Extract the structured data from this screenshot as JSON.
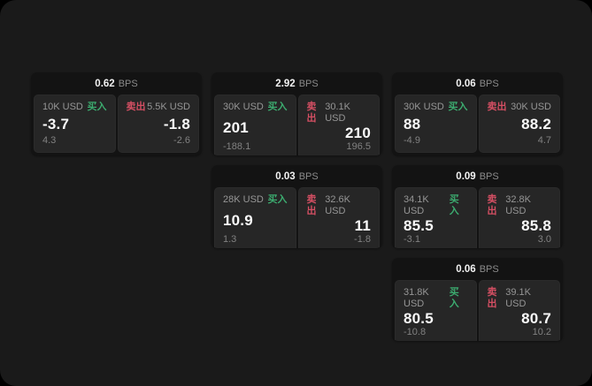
{
  "labels": {
    "buy": "买入",
    "sell": "卖出",
    "bps_unit": "BPS"
  },
  "colors": {
    "window_bg": "#1a1a1a",
    "card_bg": "#131313",
    "panel_bg": "#262626",
    "buy_green": "#3cab6f",
    "sell_red": "#d44f63"
  },
  "cards": [
    {
      "bps": "0.62",
      "grid": {
        "col": 1,
        "row": 1
      },
      "buy": {
        "amount": "10K USD",
        "price": "-3.7",
        "delta": "4.3"
      },
      "sell": {
        "amount": "5.5K USD",
        "price": "-1.8",
        "delta": "-2.6"
      }
    },
    {
      "bps": "2.92",
      "grid": {
        "col": 2,
        "row": 1
      },
      "buy": {
        "amount": "30K USD",
        "price": "201",
        "delta": "-188.1"
      },
      "sell": {
        "amount": "30.1K USD",
        "price": "210",
        "delta": "196.5"
      }
    },
    {
      "bps": "0.06",
      "grid": {
        "col": 3,
        "row": 1
      },
      "buy": {
        "amount": "30K USD",
        "price": "88",
        "delta": "-4.9"
      },
      "sell": {
        "amount": "30K USD",
        "price": "88.2",
        "delta": "4.7"
      }
    },
    {
      "bps": "0.03",
      "grid": {
        "col": 2,
        "row": 2
      },
      "buy": {
        "amount": "28K USD",
        "price": "10.9",
        "delta": "1.3"
      },
      "sell": {
        "amount": "32.6K USD",
        "price": "11",
        "delta": "-1.8"
      }
    },
    {
      "bps": "0.09",
      "grid": {
        "col": 3,
        "row": 2
      },
      "buy": {
        "amount": "34.1K USD",
        "price": "85.5",
        "delta": "-3.1"
      },
      "sell": {
        "amount": "32.8K USD",
        "price": "85.8",
        "delta": "3.0"
      }
    },
    {
      "bps": "0.06",
      "grid": {
        "col": 3,
        "row": 3
      },
      "buy": {
        "amount": "31.8K USD",
        "price": "80.5",
        "delta": "-10.8"
      },
      "sell": {
        "amount": "39.1K USD",
        "price": "80.7",
        "delta": "10.2"
      }
    }
  ]
}
